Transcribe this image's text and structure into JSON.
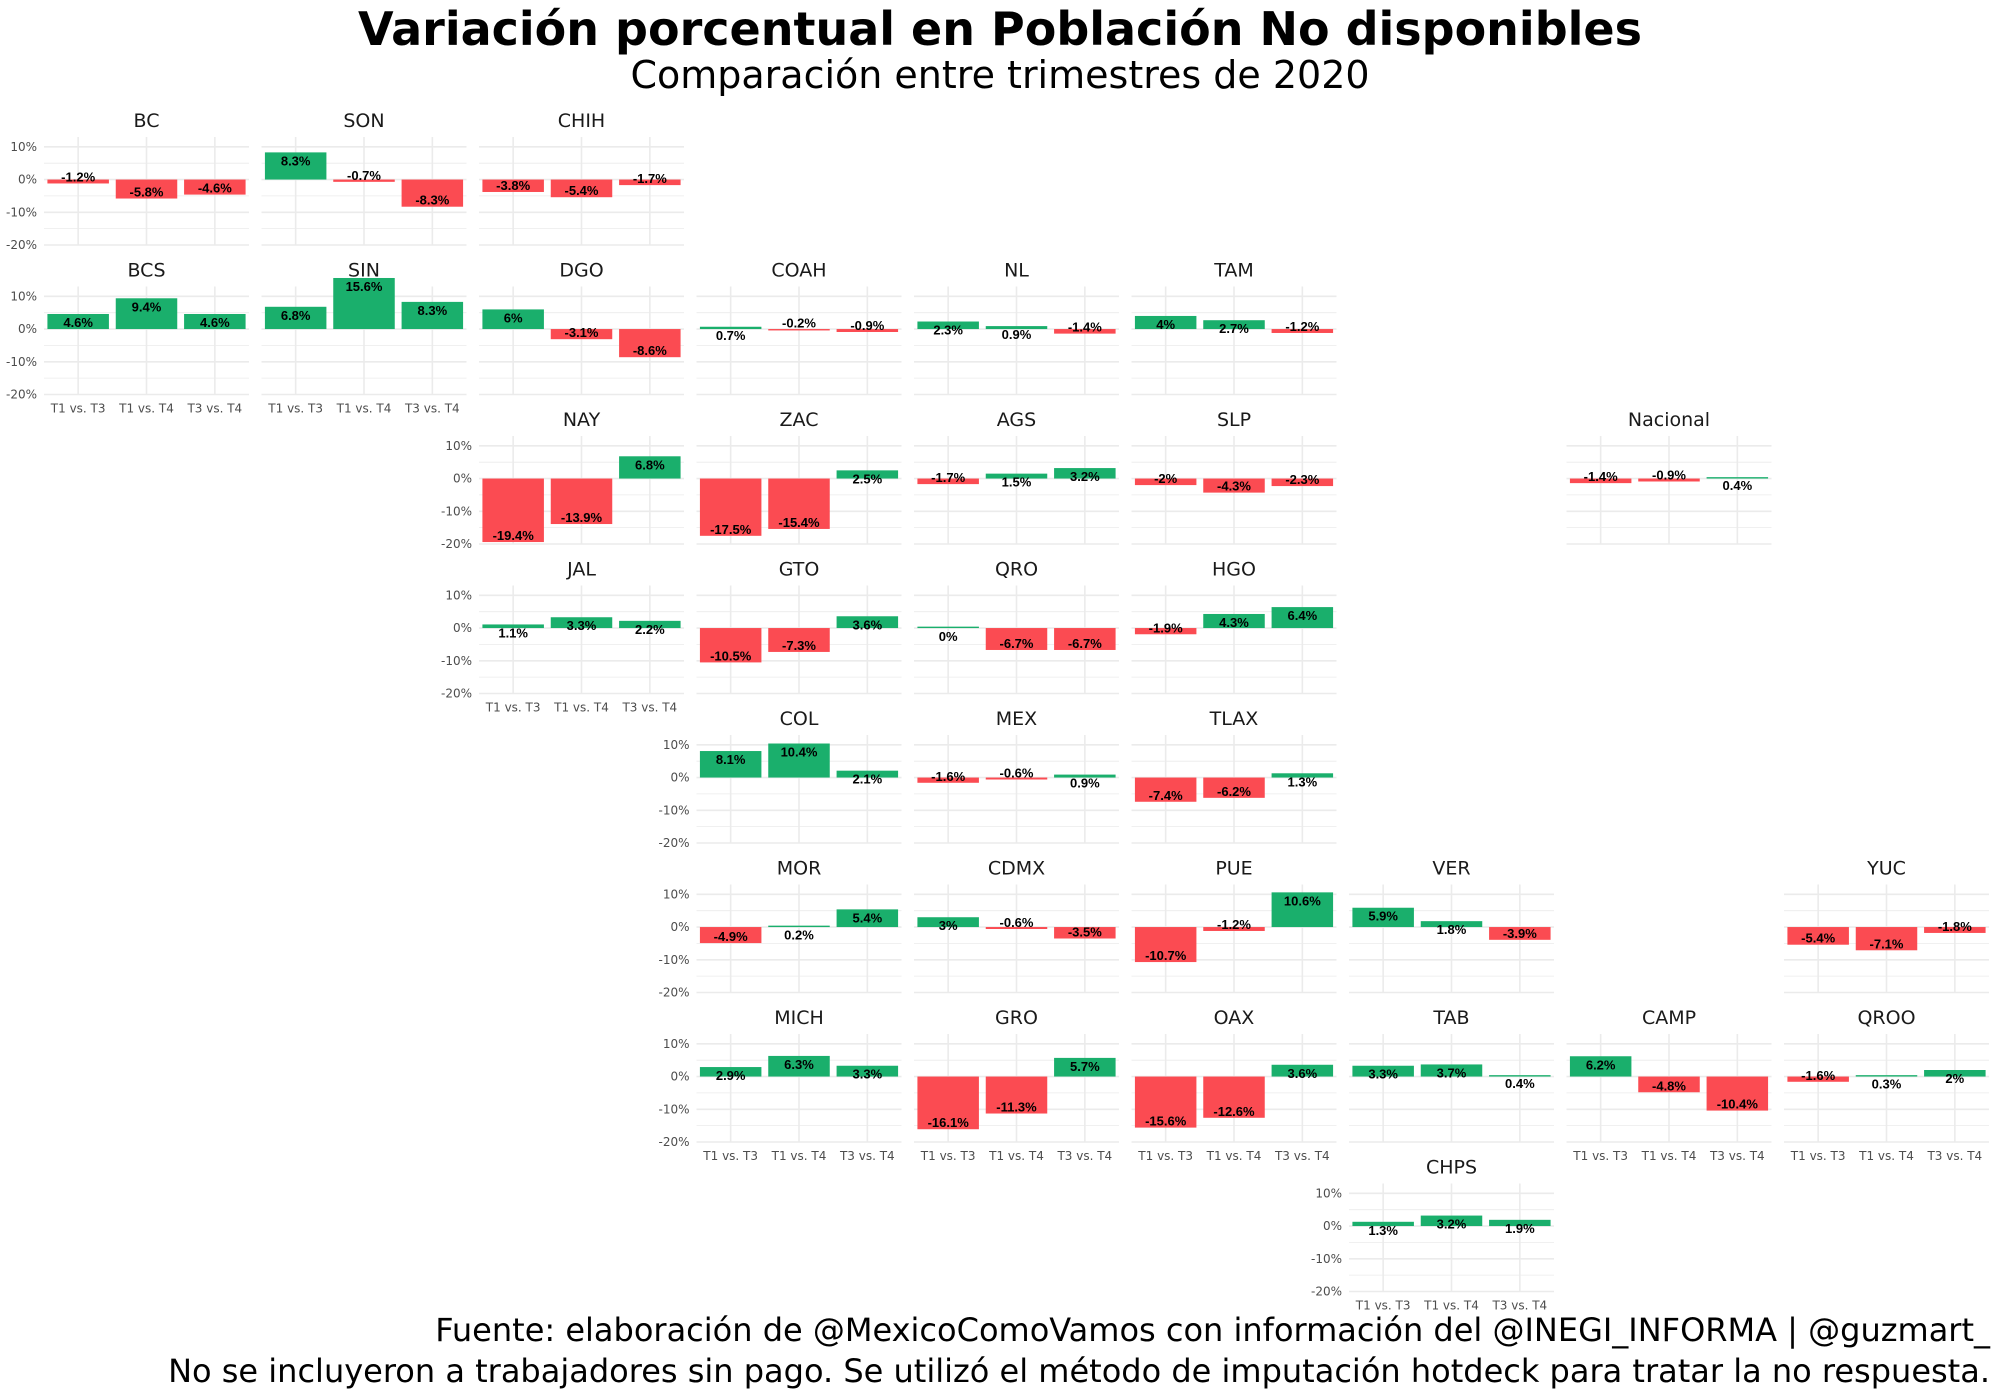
{
  "title": "Variación porcentual en Población No disponibles",
  "subtitle": "Comparación entre trimestres de 2020",
  "caption": {
    "line1": "Fuente: elaboración de @MexicoComoVamos con información del @INEGI_INFORMA | @guzmart_",
    "line2": "No se incluyeron a trabajadores sin pago. Se utilizó el método de imputación hotdeck para tratar la no respuesta."
  },
  "colors": {
    "positive": "#1aaf6c",
    "negative": "#fb4b52",
    "grid": "#ebebeb"
  },
  "chart_data": {
    "type": "bar",
    "layout": "geofacet",
    "categories": [
      "T1 vs. T3",
      "T1 vs. T4",
      "T3 vs. T4"
    ],
    "ylim": [
      -20,
      13
    ],
    "yticks": [
      10,
      0,
      -10,
      -20
    ],
    "ytick_labels": [
      "10%",
      "0%",
      "-10%",
      "-20%"
    ],
    "grid": true,
    "panels": [
      {
        "name": "BC",
        "row": 0,
        "col": 0,
        "values": [
          -1.2,
          -5.8,
          -4.6
        ],
        "labels": [
          "-1.2%",
          "-5.8%",
          "-4.6%"
        ],
        "show_y": true,
        "show_x": false
      },
      {
        "name": "SON",
        "row": 0,
        "col": 1,
        "values": [
          8.3,
          -0.7,
          -8.3
        ],
        "labels": [
          "8.3%",
          "-0.7%",
          "-8.3%"
        ],
        "show_y": false,
        "show_x": false
      },
      {
        "name": "CHIH",
        "row": 0,
        "col": 2,
        "values": [
          -3.8,
          -5.4,
          -1.7
        ],
        "labels": [
          "-3.8%",
          "-5.4%",
          "-1.7%"
        ],
        "show_y": false,
        "show_x": false
      },
      {
        "name": "BCS",
        "row": 1,
        "col": 0,
        "values": [
          4.6,
          9.4,
          4.6
        ],
        "labels": [
          "4.6%",
          "9.4%",
          "4.6%"
        ],
        "show_y": true,
        "show_x": true
      },
      {
        "name": "SIN",
        "row": 1,
        "col": 1,
        "values": [
          6.8,
          15.6,
          8.3
        ],
        "labels": [
          "6.8%",
          "15.6%",
          "8.3%"
        ],
        "show_y": false,
        "show_x": true
      },
      {
        "name": "DGO",
        "row": 1,
        "col": 2,
        "values": [
          6,
          -3.1,
          -8.6
        ],
        "labels": [
          "6%",
          "-3.1%",
          "-8.6%"
        ],
        "show_y": false,
        "show_x": false
      },
      {
        "name": "COAH",
        "row": 1,
        "col": 3,
        "values": [
          0.7,
          -0.2,
          -0.9
        ],
        "labels": [
          "0.7%",
          "-0.2%",
          "-0.9%"
        ],
        "show_y": false,
        "show_x": false
      },
      {
        "name": "NL",
        "row": 1,
        "col": 4,
        "values": [
          2.3,
          0.9,
          -1.4
        ],
        "labels": [
          "2.3%",
          "0.9%",
          "-1.4%"
        ],
        "show_y": false,
        "show_x": false
      },
      {
        "name": "TAM",
        "row": 1,
        "col": 5,
        "values": [
          4,
          2.7,
          -1.2
        ],
        "labels": [
          "4%",
          "2.7%",
          "-1.2%"
        ],
        "show_y": false,
        "show_x": false
      },
      {
        "name": "NAY",
        "row": 2,
        "col": 2,
        "values": [
          -19.4,
          -13.9,
          6.8
        ],
        "labels": [
          "-19.4%",
          "-13.9%",
          "6.8%"
        ],
        "show_y": true,
        "show_x": false
      },
      {
        "name": "ZAC",
        "row": 2,
        "col": 3,
        "values": [
          -17.5,
          -15.4,
          2.5
        ],
        "labels": [
          "-17.5%",
          "-15.4%",
          "2.5%"
        ],
        "show_y": false,
        "show_x": false
      },
      {
        "name": "AGS",
        "row": 2,
        "col": 4,
        "values": [
          -1.7,
          1.5,
          3.2
        ],
        "labels": [
          "-1.7%",
          "1.5%",
          "3.2%"
        ],
        "show_y": false,
        "show_x": false
      },
      {
        "name": "SLP",
        "row": 2,
        "col": 5,
        "values": [
          -2,
          -4.3,
          -2.3
        ],
        "labels": [
          "-2%",
          "-4.3%",
          "-2.3%"
        ],
        "show_y": false,
        "show_x": false
      },
      {
        "name": "Nacional",
        "row": 2,
        "col": 7,
        "values": [
          -1.4,
          -0.9,
          0.4
        ],
        "labels": [
          "-1.4%",
          "-0.9%",
          "0.4%"
        ],
        "show_y": false,
        "show_x": false
      },
      {
        "name": "JAL",
        "row": 3,
        "col": 2,
        "values": [
          1.1,
          3.3,
          2.2
        ],
        "labels": [
          "1.1%",
          "3.3%",
          "2.2%"
        ],
        "show_y": true,
        "show_x": true
      },
      {
        "name": "GTO",
        "row": 3,
        "col": 3,
        "values": [
          -10.5,
          -7.3,
          3.6
        ],
        "labels": [
          "-10.5%",
          "-7.3%",
          "3.6%"
        ],
        "show_y": false,
        "show_x": false
      },
      {
        "name": "QRO",
        "row": 3,
        "col": 4,
        "values": [
          0,
          -6.7,
          -6.7
        ],
        "labels": [
          "0%",
          "-6.7%",
          "-6.7%"
        ],
        "show_y": false,
        "show_x": false
      },
      {
        "name": "HGO",
        "row": 3,
        "col": 5,
        "values": [
          -1.9,
          4.3,
          6.4
        ],
        "labels": [
          "-1.9%",
          "4.3%",
          "6.4%"
        ],
        "show_y": false,
        "show_x": false
      },
      {
        "name": "COL",
        "row": 4,
        "col": 3,
        "values": [
          8.1,
          10.4,
          2.1
        ],
        "labels": [
          "8.1%",
          "10.4%",
          "2.1%"
        ],
        "show_y": true,
        "show_x": false
      },
      {
        "name": "MEX",
        "row": 4,
        "col": 4,
        "values": [
          -1.6,
          -0.6,
          0.9
        ],
        "labels": [
          "-1.6%",
          "-0.6%",
          "0.9%"
        ],
        "show_y": false,
        "show_x": false
      },
      {
        "name": "TLAX",
        "row": 4,
        "col": 5,
        "values": [
          -7.4,
          -6.2,
          1.3
        ],
        "labels": [
          "-7.4%",
          "-6.2%",
          "1.3%"
        ],
        "show_y": false,
        "show_x": false
      },
      {
        "name": "MOR",
        "row": 5,
        "col": 3,
        "values": [
          -4.9,
          0.2,
          5.4
        ],
        "labels": [
          "-4.9%",
          "0.2%",
          "5.4%"
        ],
        "show_y": true,
        "show_x": false
      },
      {
        "name": "CDMX",
        "row": 5,
        "col": 4,
        "values": [
          3,
          -0.6,
          -3.5
        ],
        "labels": [
          "3%",
          "-0.6%",
          "-3.5%"
        ],
        "show_y": false,
        "show_x": false
      },
      {
        "name": "PUE",
        "row": 5,
        "col": 5,
        "values": [
          -10.7,
          -1.2,
          10.6
        ],
        "labels": [
          "-10.7%",
          "-1.2%",
          "10.6%"
        ],
        "show_y": false,
        "show_x": false
      },
      {
        "name": "VER",
        "row": 5,
        "col": 6,
        "values": [
          5.9,
          1.8,
          -3.9
        ],
        "labels": [
          "5.9%",
          "1.8%",
          "-3.9%"
        ],
        "show_y": false,
        "show_x": false
      },
      {
        "name": "YUC",
        "row": 5,
        "col": 8,
        "values": [
          -5.4,
          -7.1,
          -1.8
        ],
        "labels": [
          "-5.4%",
          "-7.1%",
          "-1.8%"
        ],
        "show_y": false,
        "show_x": false
      },
      {
        "name": "MICH",
        "row": 6,
        "col": 3,
        "values": [
          2.9,
          6.3,
          3.3
        ],
        "labels": [
          "2.9%",
          "6.3%",
          "3.3%"
        ],
        "show_y": true,
        "show_x": true
      },
      {
        "name": "GRO",
        "row": 6,
        "col": 4,
        "values": [
          -16.1,
          -11.3,
          5.7
        ],
        "labels": [
          "-16.1%",
          "-11.3%",
          "5.7%"
        ],
        "show_y": false,
        "show_x": true
      },
      {
        "name": "OAX",
        "row": 6,
        "col": 5,
        "values": [
          -15.6,
          -12.6,
          3.6
        ],
        "labels": [
          "-15.6%",
          "-12.6%",
          "3.6%"
        ],
        "show_y": false,
        "show_x": true
      },
      {
        "name": "TAB",
        "row": 6,
        "col": 6,
        "values": [
          3.3,
          3.7,
          0.4
        ],
        "labels": [
          "3.3%",
          "3.7%",
          "0.4%"
        ],
        "show_y": false,
        "show_x": false
      },
      {
        "name": "CAMP",
        "row": 6,
        "col": 7,
        "values": [
          6.2,
          -4.8,
          -10.4
        ],
        "labels": [
          "6.2%",
          "-4.8%",
          "-10.4%"
        ],
        "show_y": false,
        "show_x": true
      },
      {
        "name": "QROO",
        "row": 6,
        "col": 8,
        "values": [
          -1.6,
          0.3,
          2
        ],
        "labels": [
          "-1.6%",
          "0.3%",
          "2%"
        ],
        "show_y": false,
        "show_x": true
      },
      {
        "name": "CHPS",
        "row": 7,
        "col": 6,
        "values": [
          1.3,
          3.2,
          1.9
        ],
        "labels": [
          "1.3%",
          "3.2%",
          "1.9%"
        ],
        "show_y": true,
        "show_x": true
      }
    ]
  }
}
